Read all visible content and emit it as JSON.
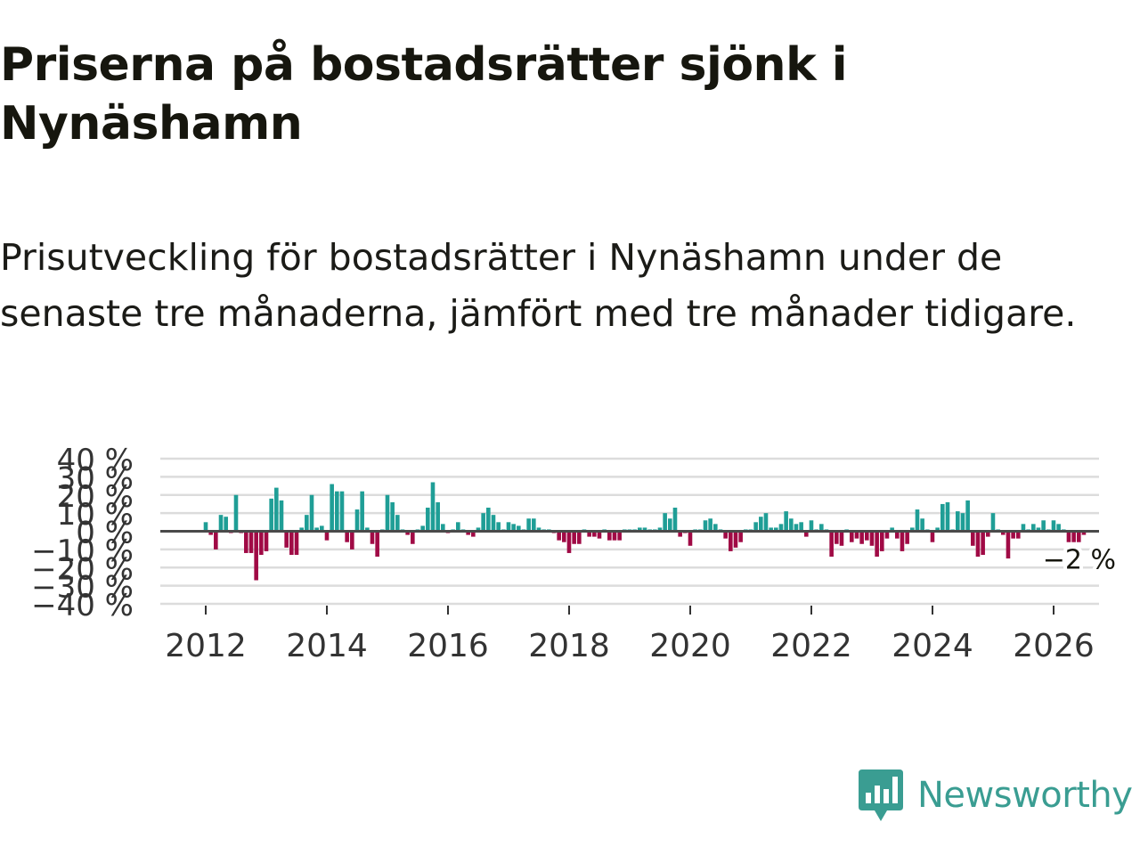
{
  "title": "Priserna på bostadsrätter sjönk i Nynäshamn",
  "subtitle": "Prisutveckling för bostadsrätter i Nynäshamn under de senaste tre månaderna, jämfört med tre månader tidigare.",
  "brand": {
    "name": "Newsworthy",
    "color": "#3a9d92"
  },
  "colors": {
    "positive": "#1f9e96",
    "negative": "#a00a45",
    "zero_line": "#4a4a4a",
    "grid": "#dcdcdc",
    "axis_text": "#333333"
  },
  "chart_data": {
    "type": "bar",
    "title": "",
    "xlabel": "",
    "ylabel": "",
    "ylim": [
      -40,
      40
    ],
    "yticks": [
      40,
      30,
      20,
      10,
      0,
      -10,
      -20,
      -30,
      -40
    ],
    "ytick_labels": [
      "40 %",
      "30 %",
      "20 %",
      "10 %",
      "0 %",
      "−10 %",
      "−20 %",
      "−30 %",
      "−40 %"
    ],
    "xticks": [
      2012,
      2014,
      2016,
      2018,
      2020,
      2022,
      2024,
      2026
    ],
    "xtick_labels": [
      "2012",
      "2014",
      "2016",
      "2018",
      "2020",
      "2022",
      "2024",
      "2026"
    ],
    "x_start": 2012.0,
    "x_step": 0.08333,
    "values": [
      5,
      -2,
      -10,
      9,
      8,
      -1,
      20,
      -1,
      -12,
      -12,
      -27,
      -13,
      -11,
      18,
      24,
      17,
      -9,
      -13,
      -13,
      2,
      9,
      20,
      2,
      3,
      -5,
      26,
      22,
      22,
      -6,
      -10,
      12,
      22,
      2,
      -7,
      -14,
      1,
      20,
      16,
      9,
      1,
      -2,
      -7,
      1,
      3,
      13,
      27,
      16,
      4,
      -1,
      1,
      5,
      1,
      -2,
      -3,
      2,
      10,
      13,
      9,
      5,
      1,
      5,
      4,
      3,
      1,
      7,
      7,
      2,
      1,
      1,
      -1,
      -5,
      -6,
      -12,
      -7,
      -7,
      1,
      -3,
      -3,
      -4,
      1,
      -5,
      -5,
      -5,
      1,
      1,
      1,
      2,
      2,
      1,
      1,
      2,
      10,
      7,
      13,
      -3,
      -1,
      -8,
      1,
      1,
      6,
      7,
      4,
      1,
      -4,
      -11,
      -9,
      -6,
      1,
      1,
      5,
      8,
      10,
      2,
      2,
      4,
      11,
      7,
      4,
      5,
      -3,
      6,
      1,
      4,
      1,
      -14,
      -7,
      -8,
      1,
      -6,
      -4,
      -7,
      -5,
      -8,
      -14,
      -11,
      -4,
      2,
      -4,
      -11,
      -7,
      2,
      12,
      7,
      1,
      -6,
      2,
      15,
      16,
      1,
      11,
      10,
      17,
      -8,
      -14,
      -13,
      -3,
      10,
      1,
      -2,
      -15,
      -4,
      -4,
      4,
      1,
      4,
      2,
      6,
      1,
      6,
      4,
      1,
      -6,
      -6,
      -6,
      -2
    ],
    "last_value_label": "−2 %"
  }
}
